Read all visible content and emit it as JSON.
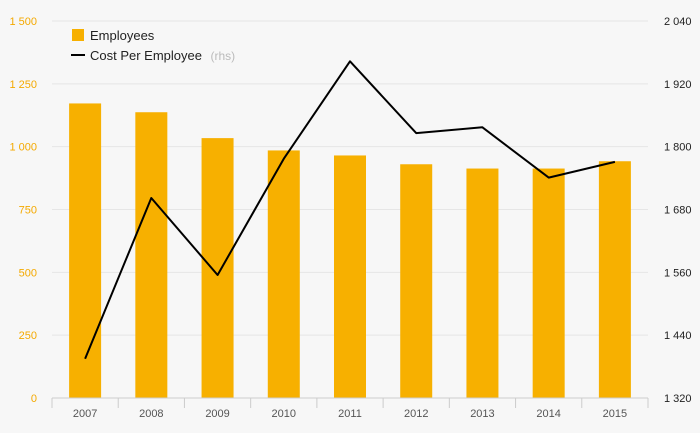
{
  "chart_data": {
    "type": "bar",
    "categories": [
      "2007",
      "2008",
      "2009",
      "2010",
      "2011",
      "2012",
      "2013",
      "2014",
      "2015"
    ],
    "series": [
      {
        "name": "Employees",
        "type": "bar",
        "axis": "left",
        "color": "#f7b000",
        "values": [
          1172,
          1137,
          1034,
          985,
          965,
          930,
          913,
          913,
          942
        ]
      },
      {
        "name": "Cost Per Employee",
        "type": "line",
        "axis": "right",
        "color": "#000000",
        "values": [
          1395,
          1702,
          1555,
          1777,
          1963,
          1826,
          1837,
          1741,
          1771
        ]
      }
    ],
    "legend": {
      "position": "top-left",
      "items": [
        {
          "label": "Employees",
          "suffix": ""
        },
        {
          "label": "Cost Per Employee",
          "suffix": "(rhs)"
        }
      ]
    },
    "y_left": {
      "ylim": [
        0,
        1500
      ],
      "ticks": [
        0,
        250,
        500,
        750,
        1000,
        1250,
        1500
      ],
      "tick_labels": [
        "0",
        "250",
        "500",
        "750",
        "1 000",
        "1 250",
        "1 500"
      ],
      "color": "#f4a900"
    },
    "y_right": {
      "ylim": [
        1320,
        2040
      ],
      "ticks": [
        1320,
        1440,
        1560,
        1680,
        1800,
        1920,
        2040
      ],
      "tick_labels": [
        "1 320",
        "1 440",
        "1 560",
        "1 680",
        "1 800",
        "1 920",
        "2 040"
      ],
      "color": "#222222"
    },
    "grid": true
  }
}
